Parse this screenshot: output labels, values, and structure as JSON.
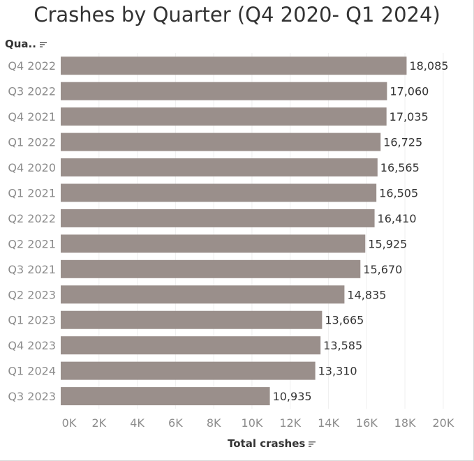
{
  "title": "Crashes by Quarter  (Q4 2020- Q1 2024)",
  "row_header": "Qua..",
  "chart_data": {
    "type": "bar",
    "orientation": "horizontal",
    "categories": [
      "Q4 2022",
      "Q3 2022",
      "Q4 2021",
      "Q1 2022",
      "Q4 2020",
      "Q1 2021",
      "Q2 2022",
      "Q2 2021",
      "Q3 2021",
      "Q2 2023",
      "Q1 2023",
      "Q4 2023",
      "Q1 2024",
      "Q3 2023"
    ],
    "values": [
      18085,
      17060,
      17035,
      16725,
      16565,
      16505,
      16410,
      15925,
      15670,
      14835,
      13665,
      13585,
      13310,
      10935
    ],
    "value_labels": [
      "18,085",
      "17,060",
      "17,035",
      "16,725",
      "16,565",
      "16,505",
      "16,410",
      "15,925",
      "15,670",
      "14,835",
      "13,665",
      "13,585",
      "13,310",
      "10,935"
    ],
    "xlabel": "Total crashes",
    "ylabel": "",
    "xlim": [
      0,
      21500
    ],
    "x_ticks": [
      0,
      2000,
      4000,
      6000,
      8000,
      10000,
      12000,
      14000,
      16000,
      18000,
      20000
    ],
    "x_tick_labels": [
      "0K",
      "2K",
      "4K",
      "6K",
      "8K",
      "10K",
      "12K",
      "14K",
      "16K",
      "18K",
      "20K"
    ],
    "grid": "vertical",
    "bar_color": "#9a8f8b",
    "text_color": "#333333",
    "tick_color": "#8c8c8c"
  },
  "icons": {
    "row_header_sort": "sort-descending-icon",
    "axis_sort": "sort-descending-icon"
  }
}
